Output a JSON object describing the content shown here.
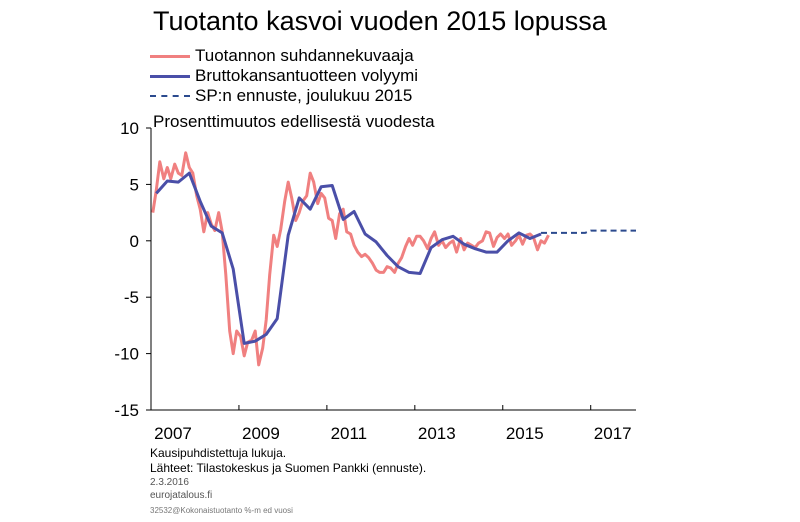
{
  "chart_data": {
    "type": "line",
    "title": "Tuotanto kasvoi vuoden 2015 lopussa",
    "ylabel": "Prosenttimuutos edellisestä vuodesta",
    "xlabel": "",
    "ylim": [
      -15,
      10
    ],
    "xlim": [
      2006.92,
      2017.95
    ],
    "yticks": [
      10,
      5,
      0,
      -5,
      -10,
      -15
    ],
    "xticks": [
      {
        "label": "2007",
        "value": 2007.42
      },
      {
        "label": "2009",
        "value": 2009.42
      },
      {
        "label": "2011",
        "value": 2011.42
      },
      {
        "label": "2013",
        "value": 2013.42
      },
      {
        "label": "2015",
        "value": 2015.42
      },
      {
        "label": "2017",
        "value": 2017.42
      }
    ],
    "xgrid_boundaries": [
      2008.92,
      2010.92,
      2012.92,
      2014.92,
      2016.92
    ],
    "grid": false,
    "legend_placement": "top-left",
    "series": [
      {
        "name": "Tuotannon suhdannekuvaaja",
        "color": "#f08080",
        "style": "solid",
        "x": [
          2006.96,
          2007.04,
          2007.12,
          2007.21,
          2007.29,
          2007.37,
          2007.46,
          2007.54,
          2007.62,
          2007.71,
          2007.79,
          2007.87,
          2007.96,
          2008.04,
          2008.12,
          2008.21,
          2008.29,
          2008.37,
          2008.46,
          2008.54,
          2008.62,
          2008.71,
          2008.79,
          2008.87,
          2008.96,
          2009.04,
          2009.12,
          2009.21,
          2009.29,
          2009.37,
          2009.46,
          2009.54,
          2009.62,
          2009.71,
          2009.79,
          2009.87,
          2009.96,
          2010.04,
          2010.12,
          2010.21,
          2010.29,
          2010.37,
          2010.46,
          2010.54,
          2010.62,
          2010.71,
          2010.79,
          2010.87,
          2010.96,
          2011.04,
          2011.12,
          2011.21,
          2011.29,
          2011.37,
          2011.46,
          2011.54,
          2011.62,
          2011.71,
          2011.79,
          2011.87,
          2011.96,
          2012.04,
          2012.12,
          2012.21,
          2012.29,
          2012.37,
          2012.46,
          2012.54,
          2012.62,
          2012.71,
          2012.79,
          2012.87,
          2012.96,
          2013.04,
          2013.12,
          2013.21,
          2013.29,
          2013.37,
          2013.46,
          2013.54,
          2013.62,
          2013.71,
          2013.79,
          2013.87,
          2013.96,
          2014.04,
          2014.12,
          2014.21,
          2014.29,
          2014.37,
          2014.46,
          2014.54,
          2014.62,
          2014.71,
          2014.79,
          2014.87,
          2014.96,
          2015.04,
          2015.12,
          2015.21,
          2015.29,
          2015.37,
          2015.46,
          2015.54,
          2015.62,
          2015.71,
          2015.79,
          2015.87,
          2015.96
        ],
        "values": [
          2.5,
          4.5,
          7.0,
          5.5,
          6.5,
          5.5,
          6.8,
          6.0,
          5.8,
          7.8,
          6.5,
          6.0,
          4.0,
          2.8,
          0.8,
          2.5,
          1.5,
          0.9,
          2.5,
          0.8,
          -3.0,
          -8.0,
          -10.0,
          -8.0,
          -8.5,
          -10.2,
          -9.0,
          -8.8,
          -8.0,
          -11.0,
          -9.5,
          -7.0,
          -3.0,
          0.5,
          -0.5,
          1.0,
          3.5,
          5.2,
          3.8,
          1.8,
          2.5,
          3.5,
          4.0,
          6.0,
          5.2,
          3.3,
          4.2,
          3.8,
          2.0,
          1.8,
          0.2,
          2.4,
          2.8,
          0.8,
          0.6,
          -0.4,
          -1.0,
          -1.4,
          -1.2,
          -1.5,
          -2.0,
          -2.6,
          -2.8,
          -2.8,
          -2.3,
          -2.4,
          -2.8,
          -2.0,
          -1.5,
          -0.5,
          0.2,
          -0.4,
          0.4,
          0.4,
          0.0,
          -0.7,
          0.2,
          0.8,
          -0.4,
          0.0,
          -0.6,
          -0.2,
          0.0,
          -1.0,
          0.2,
          -0.8,
          -0.2,
          -0.4,
          -0.6,
          -0.2,
          0.0,
          0.8,
          0.7,
          -0.5,
          0.3,
          0.6,
          0.2,
          0.6,
          -0.4,
          0.0,
          0.5,
          -0.3,
          0.5,
          0.6,
          0.3,
          -0.8,
          0.0,
          -0.2,
          0.5
        ]
      },
      {
        "name": "Bruttokansantuotteen volyymi",
        "color": "#4a4fa8",
        "style": "solid",
        "x": [
          2007.04,
          2007.29,
          2007.54,
          2007.79,
          2008.04,
          2008.29,
          2008.54,
          2008.79,
          2009.04,
          2009.29,
          2009.54,
          2009.79,
          2010.04,
          2010.29,
          2010.54,
          2010.79,
          2011.04,
          2011.29,
          2011.54,
          2011.79,
          2012.04,
          2012.29,
          2012.54,
          2012.79,
          2013.04,
          2013.29,
          2013.54,
          2013.79,
          2014.04,
          2014.29,
          2014.54,
          2014.79,
          2015.04,
          2015.29,
          2015.54,
          2015.79
        ],
        "values": [
          4.2,
          5.3,
          5.2,
          6.0,
          3.5,
          1.3,
          0.7,
          -2.5,
          -9.1,
          -8.9,
          -8.3,
          -6.9,
          0.5,
          3.8,
          2.8,
          4.8,
          4.9,
          1.9,
          2.6,
          0.6,
          -0.1,
          -1.3,
          -2.3,
          -2.8,
          -2.9,
          -0.6,
          0.1,
          0.4,
          -0.3,
          -0.7,
          -1.0,
          -1.0,
          0.0,
          0.7,
          0.2,
          0.6
        ]
      },
      {
        "name": "SP:n ennuste, joulukuu 2015",
        "color": "#2b4a8e",
        "style": "dashed",
        "x": [
          2015.79,
          2016.04,
          2016.29,
          2016.54,
          2016.79,
          2016.92,
          2017.04,
          2017.29,
          2017.54,
          2017.79,
          2017.95
        ],
        "values": [
          0.7,
          0.7,
          0.7,
          0.7,
          0.7,
          0.9,
          0.9,
          0.9,
          0.9,
          0.9,
          0.9
        ]
      }
    ]
  },
  "footer": {
    "note": "Kausipuhdistettuja  lukuja.",
    "sources": "Lähteet:  Tilastokeskus ja Suomen Pankki (ennuste).",
    "date": "2.3.2016",
    "site": "eurojatalous.fi",
    "code": "32532@Kokonaistuotanto %-m ed vuosi"
  }
}
